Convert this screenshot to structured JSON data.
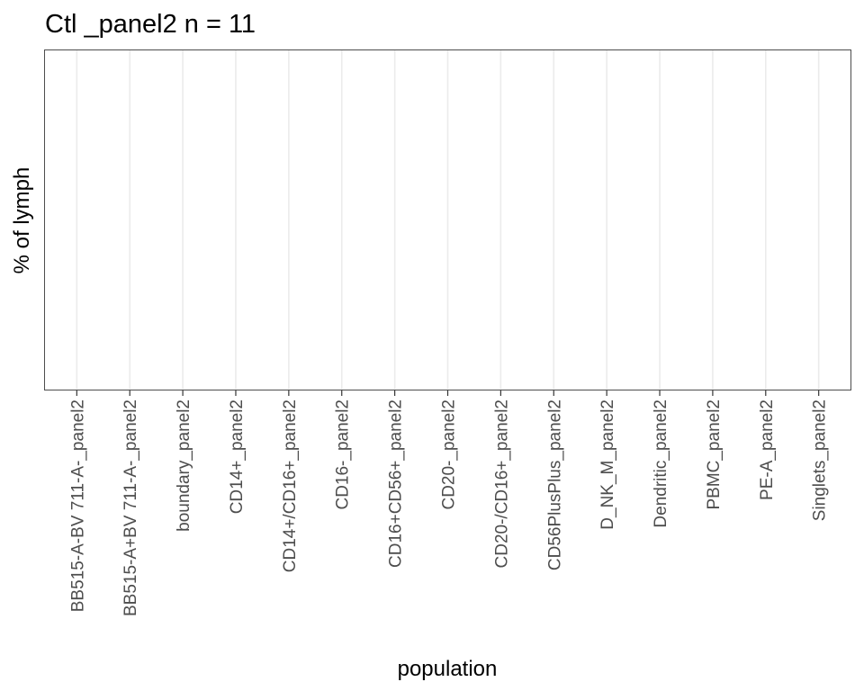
{
  "chart_data": {
    "type": "bar",
    "title": "Ctl _panel2 n = 11",
    "xlabel": "population",
    "ylabel": "% of lymph",
    "categories": [
      "BB515-A-BV 711-A-_panel2",
      "BB515-A+BV 711-A-_panel2",
      "boundary_panel2",
      "CD14+_panel2",
      "CD14+/CD16+_panel2",
      "CD16-_panel2",
      "CD16+CD56+_panel2",
      "CD20-_panel2",
      "CD20-/CD16+_panel2",
      "CD56PlusPlus_panel2",
      "D_NK_M_panel2",
      "Dendritic_panel2",
      "PBMC_panel2",
      "PE-A_panel2",
      "Singlets_panel2"
    ],
    "series": [],
    "grid": true,
    "legend": "none",
    "colors": {
      "grid": "#ebebeb",
      "border": "#4d4d4d",
      "tick_label": "#4d4d4d",
      "tick_mark": "#333333",
      "background": "#ffffff"
    }
  }
}
